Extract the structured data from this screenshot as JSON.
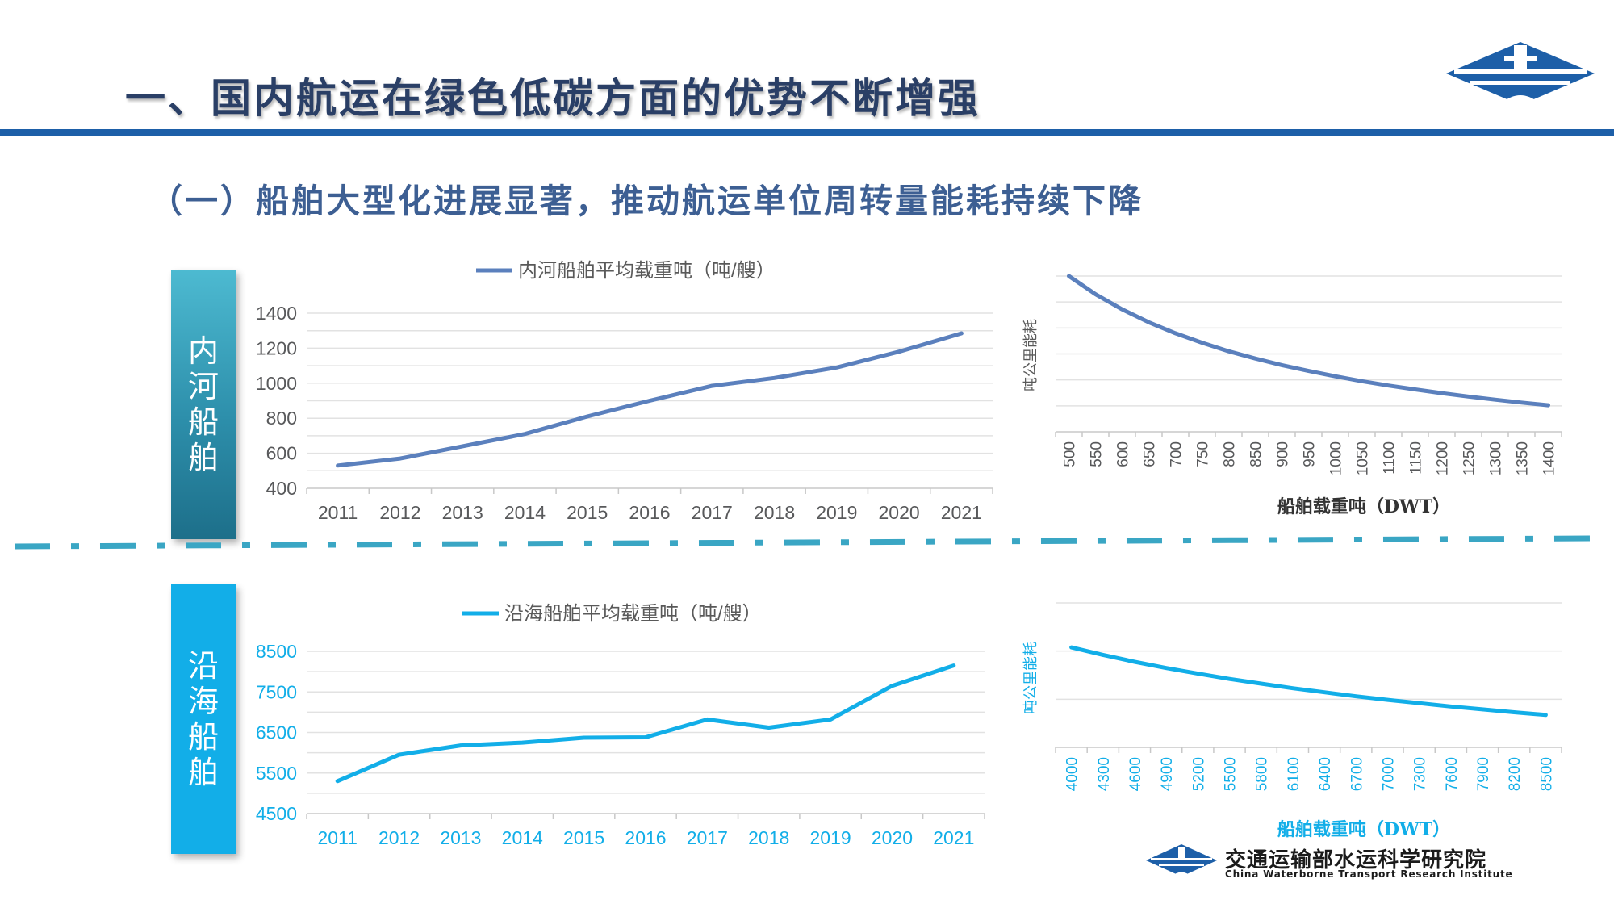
{
  "header": {
    "title": "一、国内航运在绿色低碳方面的优势不断增强",
    "subtitle": "（一）船舶大型化进展显著，推动航运单位周转量能耗持续下降"
  },
  "side_labels": {
    "inland": [
      "内",
      "河",
      "船",
      "舶"
    ],
    "coastal": [
      "沿",
      "海",
      "船",
      "舶"
    ]
  },
  "footer": {
    "org_name": "交通运输部水运科学研究院",
    "org_name_en": "China Waterborne Transport Research Institute"
  },
  "colors": {
    "inland_line": "#5b80bd",
    "coastal_line": "#12aee8",
    "inland_axis_text": "#58595b",
    "coastal_axis_text": "#12aee8",
    "brand": "#1d5fa8",
    "separator": "#3aa6c4"
  },
  "chart_data": [
    {
      "type": "line",
      "legend": "内河船舶平均载重吨（吨/艘）",
      "legend_position": "top",
      "categories": [
        "2011",
        "2012",
        "2013",
        "2014",
        "2015",
        "2016",
        "2017",
        "2018",
        "2019",
        "2020",
        "2021"
      ],
      "series": [
        {
          "name": "内河船舶平均载重吨（吨/艘）",
          "values": [
            530,
            570,
            640,
            710,
            810,
            900,
            985,
            1030,
            1090,
            1180,
            1285
          ]
        }
      ],
      "yticks": [
        400,
        600,
        800,
        1000,
        1200,
        1400
      ],
      "ylim": [
        400,
        1400
      ],
      "grid": true
    },
    {
      "type": "line",
      "categories": [
        "500",
        "550",
        "600",
        "650",
        "700",
        "750",
        "800",
        "850",
        "900",
        "950",
        "1000",
        "1050",
        "1100",
        "1150",
        "1200",
        "1250",
        "1300",
        "1350",
        "1400"
      ],
      "series": [
        {
          "values": [
            100,
            92.5,
            86.3,
            81.0,
            76.5,
            72.6,
            69.1,
            66.1,
            63.4,
            61.0,
            58.8,
            56.8,
            55.0,
            53.4,
            51.9,
            50.5,
            49.2,
            48.0,
            46.9
          ]
        }
      ],
      "xlabel": "船舶载重吨（DWT）",
      "ylabel": "吨公里能耗",
      "ylim": [
        36,
        100
      ],
      "grid": true
    },
    {
      "type": "line",
      "legend": "沿海船舶平均载重吨（吨/艘）",
      "legend_position": "top",
      "categories": [
        "2011",
        "2012",
        "2013",
        "2014",
        "2015",
        "2016",
        "2017",
        "2018",
        "2019",
        "2020",
        "2021"
      ],
      "series": [
        {
          "name": "沿海船舶平均载重吨（吨/艘）",
          "values": [
            5300,
            5950,
            6180,
            6250,
            6370,
            6380,
            6820,
            6620,
            6820,
            7650,
            8150
          ]
        }
      ],
      "yticks": [
        4500,
        5500,
        6500,
        7500,
        8500
      ],
      "ylim": [
        4500,
        8500
      ],
      "grid": true
    },
    {
      "type": "line",
      "categories": [
        "4000",
        "4300",
        "4600",
        "4900",
        "5200",
        "5500",
        "5800",
        "6100",
        "6400",
        "6700",
        "7000",
        "7300",
        "7600",
        "7900",
        "8200",
        "8500"
      ],
      "series": [
        {
          "values": [
            100,
            96.6,
            93.5,
            90.7,
            88.2,
            85.8,
            83.7,
            81.6,
            79.8,
            78.0,
            76.4,
            74.9,
            73.4,
            72.1,
            70.8,
            69.6
          ]
        }
      ],
      "xlabel": "船舶载重吨（DWT）",
      "ylabel": "吨公里能耗",
      "ylim": [
        55,
        120
      ],
      "grid": true
    }
  ]
}
